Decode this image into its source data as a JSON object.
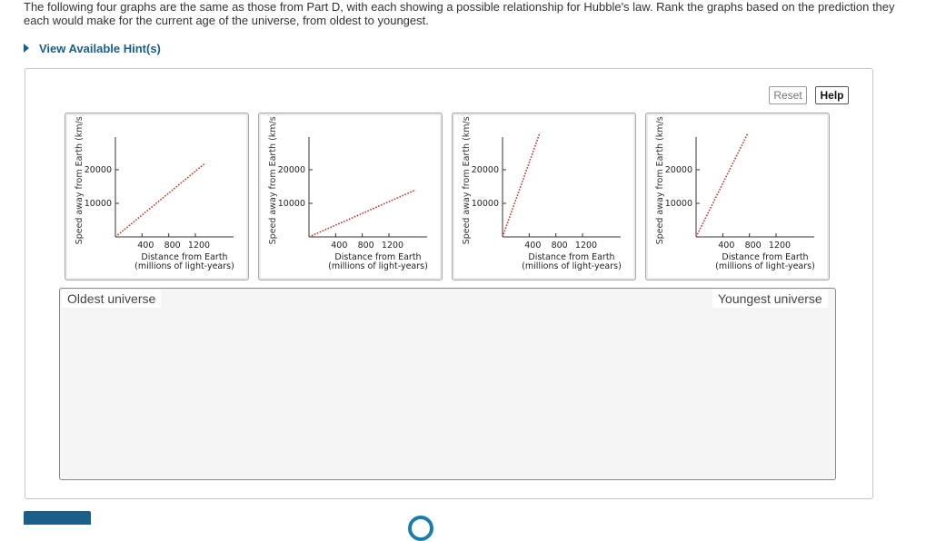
{
  "question": {
    "text": "The following four graphs are the same as those from Part D, with each showing a possible relationship for Hubble's law. Rank the graphs based on the prediction they each would make for the current age of the universe, from oldest to youngest."
  },
  "hint": {
    "label": "View Available Hint(s)"
  },
  "toolbar": {
    "reset_label": "Reset",
    "help_label": "Help"
  },
  "graphs": [
    {
      "ylabel": "Speed away from Earth (km/s)",
      "y_ticks": [
        "20000",
        "10000"
      ],
      "x_ticks": [
        "400",
        "800",
        "1200"
      ],
      "xlabel_1": "Distance from Earth",
      "xlabel_2": "(millions of light-years)",
      "line_color": "#c0392b",
      "line_end": {
        "distance": 1350,
        "speed": 22000
      }
    },
    {
      "ylabel": "Speed away from Earth (km/s)",
      "y_ticks": [
        "20000",
        "10000"
      ],
      "x_ticks": [
        "400",
        "800",
        "1200"
      ],
      "xlabel_1": "Distance from Earth",
      "xlabel_2": "(millions of light-years)",
      "line_color": "#c0392b",
      "line_end": {
        "distance": 1600,
        "speed": 14000
      }
    },
    {
      "ylabel": "Speed away from Earth (km/s)",
      "y_ticks": [
        "20000",
        "10000"
      ],
      "x_ticks": [
        "400",
        "800",
        "1200"
      ],
      "xlabel_1": "Distance from Earth",
      "xlabel_2": "(millions of light-years)",
      "line_color": "#c0392b",
      "line_end": {
        "distance": 560,
        "speed": 31000
      }
    },
    {
      "ylabel": "Speed away from Earth (km/s)",
      "y_ticks": [
        "20000",
        "10000"
      ],
      "x_ticks": [
        "400",
        "800",
        "1200"
      ],
      "xlabel_1": "Distance from Earth",
      "xlabel_2": "(millions of light-years)",
      "line_color": "#c0392b",
      "line_end": {
        "distance": 780,
        "speed": 31000
      }
    }
  ],
  "ranking": {
    "left_label": "Oldest universe",
    "right_label": "Youngest universe"
  }
}
